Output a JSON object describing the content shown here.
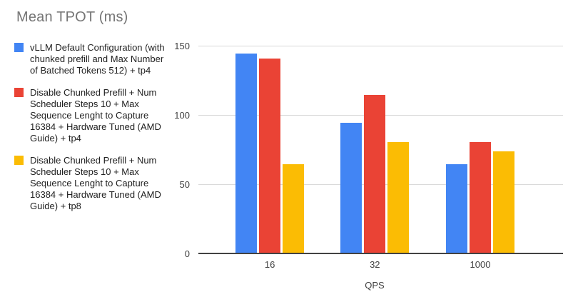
{
  "chart_data": {
    "type": "bar",
    "title": "Mean TPOT (ms)",
    "xlabel": "QPS",
    "ylabel": "",
    "categories": [
      "16",
      "32",
      "1000"
    ],
    "series": [
      {
        "name": "vLLM Default Configuration (with chunked prefill and Max Number of Batched Tokens 512) + tp4",
        "color": "#4285F4",
        "values": [
          145,
          95,
          65
        ]
      },
      {
        "name": "Disable Chunked Prefill + Num Scheduler Steps 10 + Max Sequence Lenght to Capture 16384 + Hardware Tuned (AMD Guide) + tp4",
        "color": "#EA4335",
        "values": [
          141,
          115,
          81
        ]
      },
      {
        "name": "Disable Chunked Prefill + Num Scheduler Steps 10 + Max Sequence Lenght to Capture 16384 + Hardware Tuned (AMD Guide) + tp8",
        "color": "#FBBC04",
        "values": [
          65,
          81,
          74
        ]
      }
    ],
    "ylim": [
      0,
      150
    ],
    "yticks": [
      0,
      50,
      100,
      150
    ],
    "grid": true,
    "legend_position": "left",
    "background": "#ffffff"
  }
}
